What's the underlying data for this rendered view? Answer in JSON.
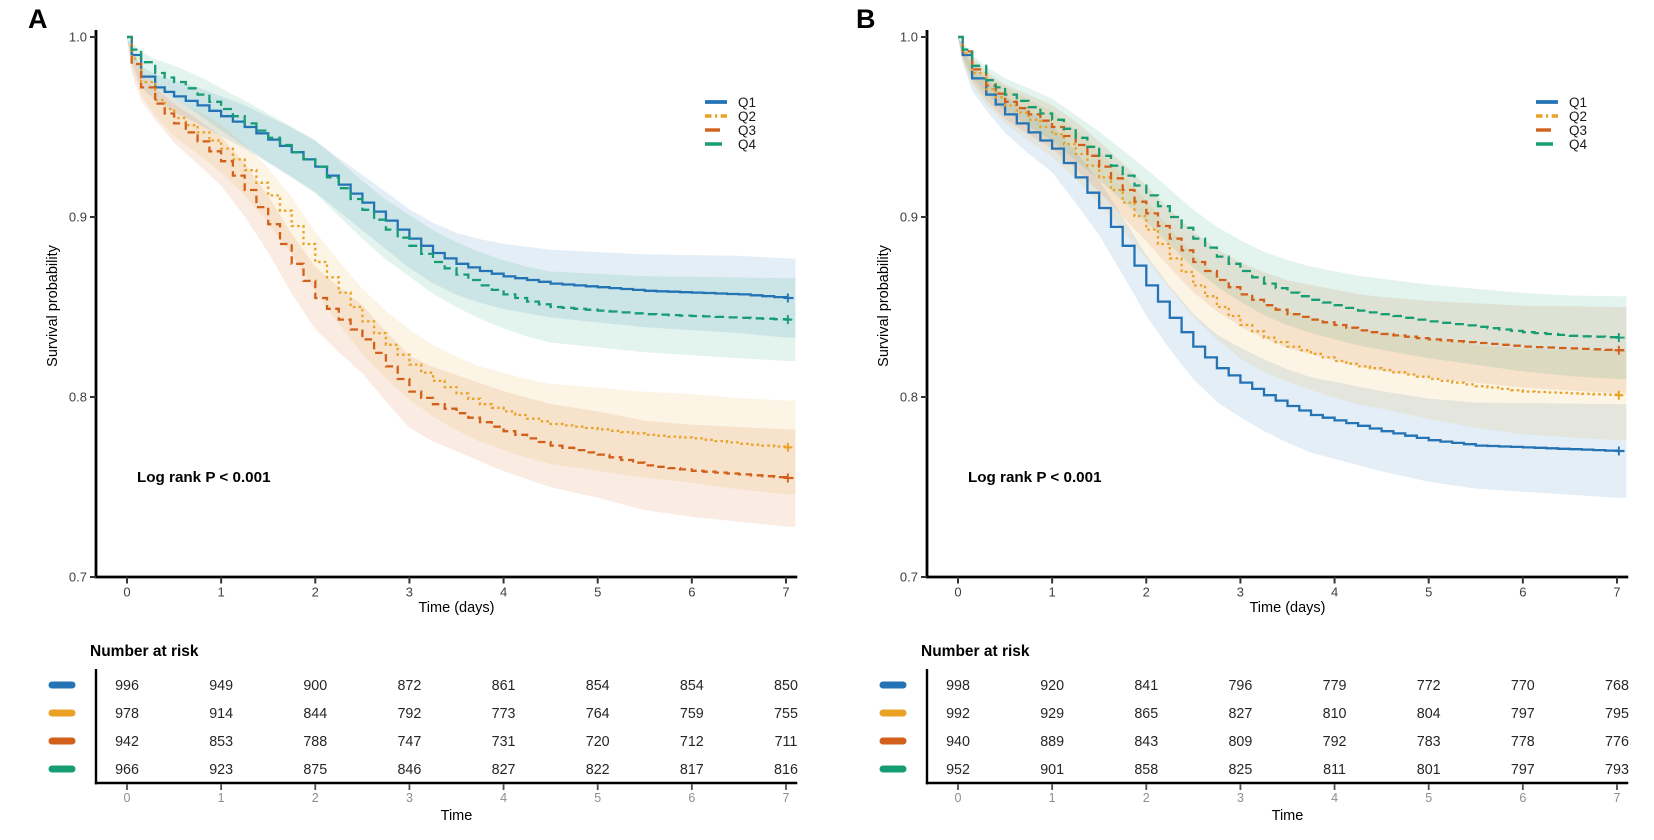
{
  "figure_type": "kaplan-meier-survival",
  "chart_data": [
    {
      "type": "line",
      "panel_label": "A",
      "xlabel": "Time (days)",
      "ylabel": "Survival probability",
      "annotation": "Log rank P < 0.001",
      "x_ticks": [
        0,
        1,
        2,
        3,
        4,
        5,
        6,
        7
      ],
      "y_ticks": [
        "1.0",
        "0.9",
        "0.8",
        "0.7"
      ],
      "xlim": [
        0,
        7
      ],
      "ylim": [
        0.7,
        1.0
      ],
      "grid": "off",
      "legend_position": "top-right",
      "t": [
        0,
        0.05,
        0.15,
        0.3,
        0.5,
        0.75,
        1,
        1.25,
        1.5,
        1.75,
        2,
        2.25,
        2.5,
        2.75,
        3,
        3.25,
        3.5,
        3.75,
        4,
        4.25,
        4.5,
        5,
        5.5,
        6,
        6.5,
        7
      ],
      "series": [
        {
          "name": "Q1",
          "color": "#2373B5",
          "linestyle": "solid",
          "band": 0.022,
          "values": [
            1.0,
            0.99,
            0.978,
            0.972,
            0.967,
            0.962,
            0.956,
            0.95,
            0.943,
            0.936,
            0.928,
            0.918,
            0.908,
            0.898,
            0.888,
            0.88,
            0.874,
            0.87,
            0.867,
            0.865,
            0.863,
            0.861,
            0.859,
            0.858,
            0.857,
            0.855
          ]
        },
        {
          "name": "Q2",
          "color": "#E9A226",
          "linestyle": "dotted",
          "band": 0.026,
          "values": [
            1.0,
            0.988,
            0.975,
            0.965,
            0.955,
            0.947,
            0.938,
            0.926,
            0.912,
            0.895,
            0.875,
            0.858,
            0.842,
            0.829,
            0.818,
            0.809,
            0.802,
            0.796,
            0.792,
            0.788,
            0.785,
            0.782,
            0.779,
            0.777,
            0.774,
            0.772
          ]
        },
        {
          "name": "Q3",
          "color": "#D2601A",
          "linestyle": "dashed",
          "band": 0.027,
          "values": [
            1.0,
            0.985,
            0.972,
            0.963,
            0.952,
            0.942,
            0.931,
            0.915,
            0.896,
            0.874,
            0.855,
            0.843,
            0.832,
            0.817,
            0.803,
            0.796,
            0.791,
            0.786,
            0.781,
            0.777,
            0.773,
            0.768,
            0.762,
            0.759,
            0.757,
            0.755
          ]
        },
        {
          "name": "Q4",
          "color": "#179D74",
          "linestyle": "longdash",
          "band": 0.023,
          "values": [
            1.0,
            0.993,
            0.986,
            0.98,
            0.975,
            0.968,
            0.96,
            0.952,
            0.944,
            0.936,
            0.928,
            0.916,
            0.904,
            0.893,
            0.884,
            0.875,
            0.868,
            0.862,
            0.857,
            0.853,
            0.85,
            0.848,
            0.846,
            0.845,
            0.844,
            0.843
          ]
        }
      ],
      "risk_table": {
        "title": "Number at risk",
        "xlabel": "Time",
        "x_ticks": [
          0,
          1,
          2,
          3,
          4,
          5,
          6,
          7
        ],
        "rows": [
          {
            "name": "Q1",
            "color": "#2373B5",
            "values": [
              996,
              949,
              900,
              872,
              861,
              854,
              854,
              850
            ]
          },
          {
            "name": "Q2",
            "color": "#E9A226",
            "values": [
              978,
              914,
              844,
              792,
              773,
              764,
              759,
              755
            ]
          },
          {
            "name": "Q3",
            "color": "#D2601A",
            "values": [
              942,
              853,
              788,
              747,
              731,
              720,
              712,
              711
            ]
          },
          {
            "name": "Q4",
            "color": "#179D74",
            "values": [
              966,
              923,
              875,
              846,
              827,
              822,
              817,
              816
            ]
          }
        ]
      }
    },
    {
      "type": "line",
      "panel_label": "B",
      "xlabel": "Time (days)",
      "ylabel": "Survival probability",
      "annotation": "Log rank P < 0.001",
      "x_ticks": [
        0,
        1,
        2,
        3,
        4,
        5,
        6,
        7
      ],
      "y_ticks": [
        "1.0",
        "0.9",
        "0.8",
        "0.7"
      ],
      "xlim": [
        0,
        7
      ],
      "ylim": [
        0.7,
        1.0
      ],
      "grid": "off",
      "legend_position": "top-right",
      "t": [
        0,
        0.05,
        0.15,
        0.3,
        0.5,
        0.75,
        1,
        1.25,
        1.5,
        1.75,
        2,
        2.25,
        2.5,
        2.75,
        3,
        3.25,
        3.5,
        3.75,
        4,
        4.25,
        4.5,
        5,
        5.5,
        6,
        6.5,
        7
      ],
      "series": [
        {
          "name": "Q1",
          "color": "#2373B5",
          "linestyle": "solid",
          "band": 0.026,
          "values": [
            1.0,
            0.99,
            0.977,
            0.968,
            0.957,
            0.947,
            0.938,
            0.922,
            0.905,
            0.884,
            0.862,
            0.844,
            0.828,
            0.816,
            0.808,
            0.801,
            0.795,
            0.79,
            0.787,
            0.784,
            0.781,
            0.776,
            0.773,
            0.772,
            0.771,
            0.77
          ]
        },
        {
          "name": "Q2",
          "color": "#E9A226",
          "linestyle": "dotted",
          "band": 0.025,
          "values": [
            1.0,
            0.991,
            0.98,
            0.971,
            0.962,
            0.954,
            0.946,
            0.935,
            0.922,
            0.908,
            0.893,
            0.877,
            0.862,
            0.85,
            0.84,
            0.833,
            0.828,
            0.824,
            0.82,
            0.817,
            0.815,
            0.81,
            0.806,
            0.803,
            0.802,
            0.801
          ]
        },
        {
          "name": "Q3",
          "color": "#D2601A",
          "linestyle": "dashed",
          "band": 0.024,
          "values": [
            1.0,
            0.992,
            0.982,
            0.973,
            0.964,
            0.957,
            0.95,
            0.94,
            0.928,
            0.915,
            0.902,
            0.888,
            0.875,
            0.865,
            0.857,
            0.851,
            0.846,
            0.843,
            0.84,
            0.837,
            0.835,
            0.832,
            0.83,
            0.828,
            0.827,
            0.826
          ]
        },
        {
          "name": "Q4",
          "color": "#179D74",
          "linestyle": "longdash",
          "band": 0.023,
          "values": [
            1.0,
            0.993,
            0.984,
            0.976,
            0.968,
            0.961,
            0.954,
            0.944,
            0.934,
            0.923,
            0.912,
            0.9,
            0.888,
            0.878,
            0.87,
            0.863,
            0.858,
            0.854,
            0.851,
            0.848,
            0.846,
            0.842,
            0.839,
            0.836,
            0.834,
            0.833
          ]
        }
      ],
      "risk_table": {
        "title": "Number at risk",
        "xlabel": "Time",
        "x_ticks": [
          0,
          1,
          2,
          3,
          4,
          5,
          6,
          7
        ],
        "rows": [
          {
            "name": "Q1",
            "color": "#2373B5",
            "values": [
              998,
              920,
              841,
              796,
              779,
              772,
              770,
              768
            ]
          },
          {
            "name": "Q2",
            "color": "#E9A226",
            "values": [
              992,
              929,
              865,
              827,
              810,
              804,
              797,
              795
            ]
          },
          {
            "name": "Q3",
            "color": "#D2601A",
            "values": [
              940,
              889,
              843,
              809,
              792,
              783,
              778,
              776
            ]
          },
          {
            "name": "Q4",
            "color": "#179D74",
            "values": [
              952,
              901,
              858,
              825,
              811,
              801,
              797,
              793
            ]
          }
        ]
      }
    }
  ],
  "colors": {
    "q1_blue": "#2373B5",
    "q2_yellow": "#E9A226",
    "q3_orange": "#D2601A",
    "q4_green": "#179D74",
    "axis_black": "#000000",
    "tick_label_gray": "#404040",
    "table_tick_gray": "#8E8E8E"
  }
}
